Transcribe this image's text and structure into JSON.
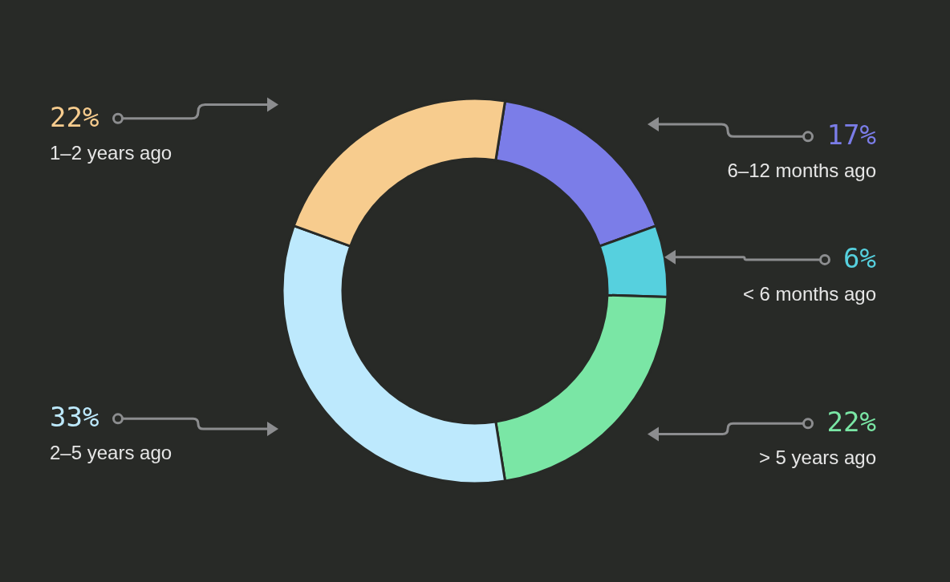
{
  "chart_data": {
    "type": "donut",
    "categories": [
      "6–12 months ago",
      "< 6 months ago",
      "> 5 years ago",
      "2–5 years ago",
      "1–2 years ago"
    ],
    "values": [
      17,
      6,
      22,
      33,
      22
    ],
    "colors": [
      "#7b7de8",
      "#56d0de",
      "#7ae6a5",
      "#bde9fd",
      "#f7cc8e"
    ],
    "value_labels": [
      "17%",
      "6%",
      "22%",
      "33%",
      "22%"
    ]
  }
}
